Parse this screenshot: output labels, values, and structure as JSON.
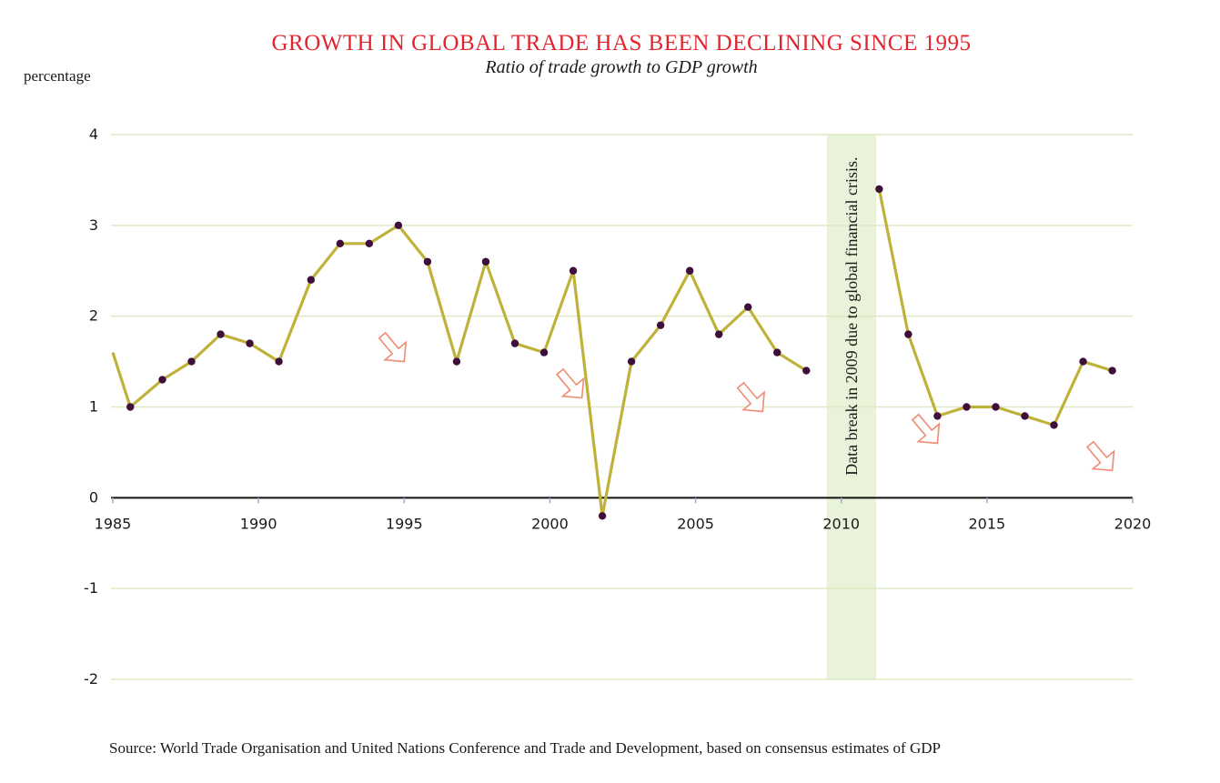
{
  "chart_data": {
    "type": "line",
    "title": "GROWTH IN GLOBAL TRADE HAS BEEN DECLINING SINCE 1995",
    "subtitle": "Ratio of trade growth to GDP growth",
    "ylabel": "percentage",
    "xlabel": "",
    "xlim": [
      1985,
      2020
    ],
    "ylim": [
      -2,
      4
    ],
    "x_ticks": [
      1985,
      1990,
      1995,
      2000,
      2005,
      2010,
      2015,
      2020
    ],
    "y_ticks": [
      4,
      3,
      2,
      1,
      0,
      -1,
      -2
    ],
    "grid": true,
    "colors": {
      "title": "#e0252f",
      "line": "#bfb23a",
      "markers": "#3d0f3a",
      "grid": "#dfe9c6",
      "band": "#e8f3da",
      "arrows": "#f08d76"
    },
    "series": [
      {
        "segments": [
          {
            "x": [
              1985,
              1985.6,
              1986.7,
              1987.7,
              1988.7,
              1989.7,
              1990.7,
              1991.8,
              1992.8,
              1993.8,
              1994.8,
              1995.8,
              1996.8,
              1997.8,
              1998.8,
              1999.8,
              2000.8,
              2001.8,
              2002.8,
              2003.8,
              2004.8,
              2005.8,
              2006.8,
              2007.8,
              2008.8
            ],
            "y": [
              1.6,
              1.0,
              1.3,
              1.5,
              1.8,
              1.7,
              1.5,
              2.4,
              2.8,
              2.8,
              3.0,
              2.6,
              1.5,
              2.6,
              1.7,
              1.6,
              2.5,
              -0.2,
              1.5,
              1.9,
              2.5,
              1.8,
              2.1,
              1.6,
              1.4
            ]
          },
          {
            "x": [
              2011.3,
              2012.3,
              2013.3,
              2014.3,
              2015.3,
              2016.3,
              2017.3,
              2018.3,
              2019.3
            ],
            "y": [
              3.4,
              1.8,
              0.9,
              1.0,
              1.0,
              0.9,
              0.8,
              1.5,
              1.4
            ]
          }
        ]
      }
    ],
    "shaded_band": {
      "x": [
        2009.5,
        2011.2
      ],
      "y": [
        -2,
        4
      ]
    },
    "band_note": "Data break in 2009 due to global financial crisis.",
    "decline_arrows": [
      {
        "x": 1995,
        "y": 1.5
      },
      {
        "x": 2001.1,
        "y": 1.1
      },
      {
        "x": 2007.3,
        "y": 0.95
      },
      {
        "x": 2013.3,
        "y": 0.6
      },
      {
        "x": 2019.3,
        "y": 0.3
      }
    ],
    "source": "Source: World Trade Organisation and United Nations Conference and Trade and Development, based on consensus estimates of GDP"
  }
}
